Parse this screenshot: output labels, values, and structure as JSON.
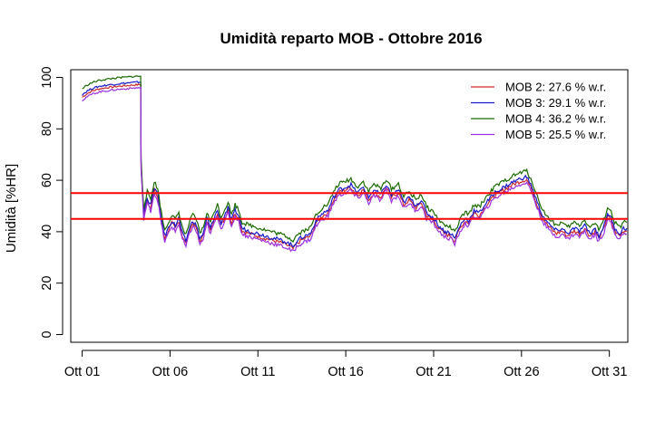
{
  "chart_data": {
    "type": "line",
    "title": "Umidità reparto MOB - Ottobre 2016",
    "xlabel": "",
    "ylabel": "Umidità [%HR]",
    "xlim": [
      0.35,
      32.05
    ],
    "ylim": [
      -3,
      103
    ],
    "x_ticks": [
      {
        "x": 1,
        "label": "Ott 01"
      },
      {
        "x": 6,
        "label": "Ott 06"
      },
      {
        "x": 11,
        "label": "Ott 11"
      },
      {
        "x": 16,
        "label": "Ott 16"
      },
      {
        "x": 21,
        "label": "Ott 21"
      },
      {
        "x": 26,
        "label": "Ott 26"
      },
      {
        "x": 31,
        "label": "Ott 31"
      }
    ],
    "y_ticks": [
      0,
      20,
      40,
      60,
      80,
      100
    ],
    "reference_lines": [
      {
        "y": 45,
        "color": "#ff0000"
      },
      {
        "y": 55,
        "color": "#ff0000"
      }
    ],
    "grid": false,
    "legend_position": "top-right",
    "base_curve": [
      [
        1.0,
        92
      ],
      [
        1.3,
        93.5
      ],
      [
        1.6,
        94.5
      ],
      [
        2.0,
        95.3
      ],
      [
        2.5,
        95.8
      ],
      [
        3.0,
        96.2
      ],
      [
        3.5,
        96.5
      ],
      [
        4.0,
        96.8
      ],
      [
        4.33,
        96.9
      ],
      [
        4.35,
        65
      ],
      [
        4.5,
        46
      ],
      [
        4.7,
        52
      ],
      [
        4.9,
        49
      ],
      [
        5.1,
        56
      ],
      [
        5.3,
        53
      ],
      [
        5.5,
        44
      ],
      [
        5.7,
        37
      ],
      [
        5.9,
        40
      ],
      [
        6.1,
        43
      ],
      [
        6.3,
        41
      ],
      [
        6.5,
        44
      ],
      [
        6.7,
        38
      ],
      [
        6.9,
        35
      ],
      [
        7.1,
        40
      ],
      [
        7.3,
        43
      ],
      [
        7.5,
        41
      ],
      [
        7.7,
        36
      ],
      [
        7.9,
        38
      ],
      [
        8.1,
        44
      ],
      [
        8.3,
        40
      ],
      [
        8.5,
        44
      ],
      [
        8.7,
        47
      ],
      [
        8.9,
        42
      ],
      [
        9.1,
        45
      ],
      [
        9.3,
        48
      ],
      [
        9.5,
        43
      ],
      [
        9.7,
        47
      ],
      [
        9.9,
        45
      ],
      [
        10.1,
        40
      ],
      [
        10.5,
        39
      ],
      [
        11.0,
        38
      ],
      [
        11.5,
        37
      ],
      [
        12.0,
        36
      ],
      [
        12.5,
        35
      ],
      [
        12.8,
        34
      ],
      [
        13.0,
        33
      ],
      [
        13.2,
        35
      ],
      [
        13.5,
        36.5
      ],
      [
        14.0,
        38
      ],
      [
        14.3,
        43
      ],
      [
        14.7,
        46
      ],
      [
        15.0,
        47
      ],
      [
        15.3,
        52
      ],
      [
        15.6,
        55
      ],
      [
        16.0,
        56
      ],
      [
        16.3,
        57
      ],
      [
        16.5,
        55
      ],
      [
        16.7,
        54
      ],
      [
        17.0,
        56
      ],
      [
        17.3,
        52
      ],
      [
        17.6,
        55
      ],
      [
        18.0,
        53
      ],
      [
        18.3,
        57
      ],
      [
        18.6,
        53
      ],
      [
        19.0,
        55
      ],
      [
        19.3,
        50
      ],
      [
        19.6,
        52
      ],
      [
        20.0,
        49
      ],
      [
        20.3,
        51
      ],
      [
        20.6,
        46
      ],
      [
        21.0,
        44
      ],
      [
        21.3,
        41
      ],
      [
        21.6,
        39
      ],
      [
        22.0,
        38
      ],
      [
        22.2,
        36
      ],
      [
        22.5,
        41
      ],
      [
        22.8,
        44
      ],
      [
        23.0,
        43
      ],
      [
        23.3,
        47
      ],
      [
        23.6,
        46
      ],
      [
        24.0,
        50
      ],
      [
        24.5,
        54
      ],
      [
        25.0,
        56
      ],
      [
        25.5,
        58
      ],
      [
        26.0,
        59.5
      ],
      [
        26.3,
        60
      ],
      [
        26.6,
        56
      ],
      [
        26.9,
        50
      ],
      [
        27.2,
        45
      ],
      [
        27.5,
        42
      ],
      [
        27.8,
        40
      ],
      [
        28.0,
        39
      ],
      [
        28.3,
        40
      ],
      [
        28.6,
        38
      ],
      [
        29.0,
        40
      ],
      [
        29.3,
        39
      ],
      [
        29.6,
        41
      ],
      [
        29.9,
        38
      ],
      [
        30.2,
        40
      ],
      [
        30.4,
        37
      ],
      [
        30.7,
        41
      ],
      [
        30.9,
        46
      ],
      [
        31.1,
        44
      ],
      [
        31.3,
        40
      ],
      [
        31.6,
        38
      ],
      [
        31.8,
        40
      ],
      [
        32.0,
        40
      ]
    ],
    "series": [
      {
        "name": "MOB 2:  27.6 % w.r.",
        "color": "#cc2a2a",
        "offset": 0.3
      },
      {
        "name": "MOB 3:  29.1 % w.r.",
        "color": "#1a1acc",
        "offset": 1.3
      },
      {
        "name": "MOB 4:  36.2 % w.r.",
        "color": "#1a6b00",
        "offset": 3.6
      },
      {
        "name": "MOB 5:  25.5 % w.r.",
        "color": "#9b30e0",
        "offset": -0.9
      }
    ]
  }
}
